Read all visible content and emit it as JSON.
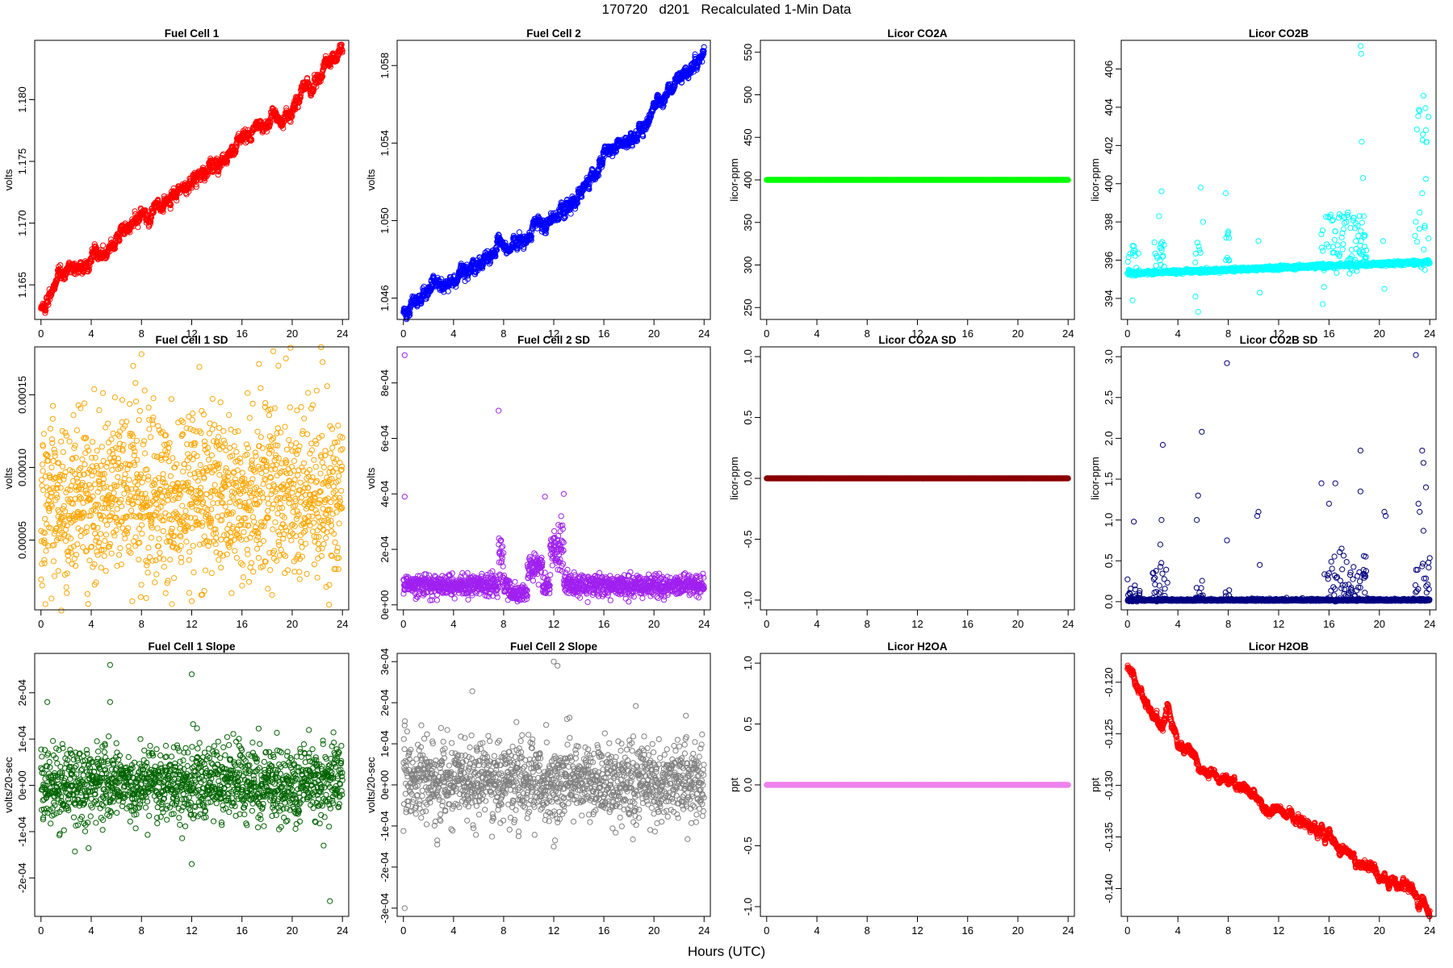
{
  "figure": {
    "title": "170720   d201   Recalculated 1-Min Data",
    "xlabel": "Hours (UTC)"
  },
  "chart_data": [
    {
      "id": "fc1",
      "type": "scatter",
      "title": "Fuel Cell 1",
      "ylabel": "volts",
      "color": "#ff0000",
      "xlim": [
        -0.5,
        24.5
      ],
      "ylim": [
        1.1622,
        1.1848
      ],
      "xticks": [
        0,
        4,
        8,
        12,
        16,
        20,
        24
      ],
      "yticks": [
        1.165,
        1.17,
        1.175,
        1.18
      ],
      "ytick_labels": [
        "1.165",
        "1.170",
        "1.175",
        "1.180"
      ],
      "gen": {
        "kind": "trend",
        "points": [
          [
            0,
            1.163
          ],
          [
            1,
            1.1645
          ],
          [
            2,
            1.1656
          ],
          [
            4,
            1.1672
          ],
          [
            6,
            1.1685
          ],
          [
            8,
            1.1705
          ],
          [
            10,
            1.1715
          ],
          [
            12,
            1.1732
          ],
          [
            14,
            1.1748
          ],
          [
            16,
            1.1768
          ],
          [
            18,
            1.1778
          ],
          [
            20,
            1.1795
          ],
          [
            22,
            1.1818
          ],
          [
            24,
            1.1838
          ]
        ],
        "noise": 0.0003,
        "n": 1440
      }
    },
    {
      "id": "fc2",
      "type": "scatter",
      "title": "Fuel Cell 2",
      "ylabel": "volts",
      "color": "#0000ff",
      "xlim": [
        -0.5,
        24.5
      ],
      "ylim": [
        1.0449,
        1.0593
      ],
      "xticks": [
        0,
        4,
        8,
        12,
        16,
        20,
        24
      ],
      "yticks": [
        1.046,
        1.05,
        1.054,
        1.058
      ],
      "ytick_labels": [
        "1.046",
        "1.050",
        "1.054",
        "1.058"
      ],
      "gen": {
        "kind": "trend",
        "points": [
          [
            0,
            1.0455
          ],
          [
            1,
            1.046
          ],
          [
            2,
            1.0463
          ],
          [
            4,
            1.047
          ],
          [
            6,
            1.0478
          ],
          [
            8,
            1.0487
          ],
          [
            10,
            1.0493
          ],
          [
            12,
            1.0502
          ],
          [
            14,
            1.0512
          ],
          [
            16,
            1.0532
          ],
          [
            18,
            1.054
          ],
          [
            20,
            1.0556
          ],
          [
            22,
            1.0573
          ],
          [
            24,
            1.0585
          ]
        ],
        "noise": 0.0002,
        "n": 1440
      }
    },
    {
      "id": "co2a",
      "type": "scatter",
      "title": "Licor CO2A",
      "ylabel": "licor-ppm",
      "color": "#00ff00",
      "xlim": [
        -0.5,
        24.5
      ],
      "ylim": [
        236,
        564
      ],
      "xticks": [
        0,
        4,
        8,
        12,
        16,
        20,
        24
      ],
      "yticks": [
        250,
        300,
        350,
        400,
        450,
        500,
        550
      ],
      "ytick_labels": [
        "250",
        "300",
        "350",
        "400",
        "450",
        "500",
        "550"
      ],
      "gen": {
        "kind": "flat",
        "value": 400,
        "n": 1440
      }
    },
    {
      "id": "co2b",
      "type": "scatter",
      "title": "Licor CO2B",
      "ylabel": "licor-ppm",
      "color": "#00ffff",
      "xlim": [
        -0.5,
        24.5
      ],
      "ylim": [
        392.9,
        407.5
      ],
      "xticks": [
        0,
        4,
        8,
        12,
        16,
        20,
        24
      ],
      "yticks": [
        394,
        396,
        398,
        400,
        402,
        404,
        406
      ],
      "ytick_labels": [
        "394",
        "396",
        "398",
        "400",
        "402",
        "404",
        "406"
      ],
      "gen": {
        "kind": "base_spikes",
        "start": 395.3,
        "end": 395.9,
        "noise": 0.05,
        "n": 1440,
        "spikes": [
          [
            0.4,
            393.9
          ],
          [
            0.6,
            396.5
          ],
          [
            2.5,
            398.3
          ],
          [
            2.7,
            399.6
          ],
          [
            2.9,
            396.8
          ],
          [
            5.4,
            394.1
          ],
          [
            5.6,
            393.3
          ],
          [
            5.8,
            399.8
          ],
          [
            6.0,
            398.0
          ],
          [
            7.8,
            399.5
          ],
          [
            8.0,
            397.5
          ],
          [
            10.5,
            394.3
          ],
          [
            10.4,
            397.0
          ],
          [
            15.5,
            393.7
          ],
          [
            15.6,
            394.6
          ],
          [
            16.5,
            397.5
          ],
          [
            17.0,
            398.3
          ],
          [
            17.5,
            398.5
          ],
          [
            18.5,
            407.2
          ],
          [
            18.55,
            406.8
          ],
          [
            18.6,
            402.2
          ],
          [
            18.7,
            400.3
          ],
          [
            20.4,
            394.5
          ],
          [
            20.3,
            397.0
          ],
          [
            22.9,
            398.0
          ],
          [
            23.2,
            403.8
          ],
          [
            23.5,
            404.6
          ],
          [
            23.7,
            402.8
          ],
          [
            23.9,
            403.5
          ],
          [
            23.4,
            399.5
          ],
          [
            23.6,
            397.8
          ]
        ],
        "scatter_windows": [
          [
            0,
            1,
            396.8
          ],
          [
            2,
            3,
            397
          ],
          [
            5.3,
            6,
            397
          ],
          [
            7.7,
            8.1,
            397.5
          ],
          [
            15.3,
            19,
            398.5
          ],
          [
            22.8,
            24,
            404
          ]
        ]
      }
    },
    {
      "id": "fc1sd",
      "type": "scatter",
      "title": "Fuel Cell 1 SD",
      "ylabel": "volts",
      "color": "#ffa500",
      "xlim": [
        -0.5,
        24.5
      ],
      "ylim": [
        2e-06,
        0.000183
      ],
      "xticks": [
        0,
        4,
        8,
        12,
        16,
        20,
        24
      ],
      "yticks": [
        5e-05,
        0.0001,
        0.00015
      ],
      "ytick_labels": [
        "0.00005",
        "0.00010",
        "0.00015"
      ],
      "gen": {
        "kind": "noise",
        "center": 8e-05,
        "spread": 3e-05,
        "n": 1440,
        "outliers": [
          [
            18.5,
            0.00018
          ],
          [
            19.5,
            0.000175
          ],
          [
            8,
            0.000178
          ],
          [
            12,
            8e-06
          ],
          [
            13,
            1.5e-05
          ],
          [
            18.9,
            0.00017
          ]
        ]
      }
    },
    {
      "id": "fc2sd",
      "type": "scatter",
      "title": "Fuel Cell 2 SD",
      "ylabel": "volts",
      "color": "#a020f0",
      "xlim": [
        -0.5,
        24.5
      ],
      "ylim": [
        -1.8e-05,
        0.00093
      ],
      "xticks": [
        0,
        4,
        8,
        12,
        16,
        20,
        24
      ],
      "yticks": [
        0,
        0.0002,
        0.0004,
        0.0006,
        0.0008
      ],
      "ytick_labels": [
        "0e+00",
        "2e-04",
        "4e-04",
        "6e-04",
        "8e-04"
      ],
      "gen": {
        "kind": "sd2",
        "n": 1440,
        "outliers": [
          [
            0.1,
            0.0009
          ],
          [
            0.1,
            0.00039
          ],
          [
            7.6,
            0.0007
          ],
          [
            11.3,
            0.00039
          ],
          [
            12.8,
            0.0004
          ]
        ]
      }
    },
    {
      "id": "co2asd",
      "type": "scatter",
      "title": "Licor CO2A SD",
      "ylabel": "licor-ppm",
      "color": "#8b0000",
      "xlim": [
        -0.5,
        24.5
      ],
      "ylim": [
        -1.08,
        1.08
      ],
      "xticks": [
        0,
        4,
        8,
        12,
        16,
        20,
        24
      ],
      "yticks": [
        -1,
        -0.5,
        0,
        0.5,
        1
      ],
      "ytick_labels": [
        "-1.0",
        "-0.5",
        "0.0",
        "0.5",
        "1.0"
      ],
      "gen": {
        "kind": "flat",
        "value": 0,
        "n": 1440
      }
    },
    {
      "id": "co2bsd",
      "type": "scatter",
      "title": "Licor CO2B SD",
      "ylabel": "licor-ppm",
      "color": "#000080",
      "xlim": [
        -0.5,
        24.5
      ],
      "ylim": [
        -0.1,
        3.12
      ],
      "xticks": [
        0,
        4,
        8,
        12,
        16,
        20,
        24
      ],
      "yticks": [
        0,
        0.5,
        1,
        1.5,
        2,
        2.5,
        3
      ],
      "ytick_labels": [
        "0.0",
        "0.5",
        "1.0",
        "1.5",
        "2.0",
        "2.5",
        "3.0"
      ],
      "gen": {
        "kind": "sdspikes",
        "n": 1440,
        "spikes": [
          [
            0.5,
            0.98
          ],
          [
            2.7,
            1.0
          ],
          [
            2.8,
            1.92
          ],
          [
            2.6,
            0.7
          ],
          [
            5.6,
            1.3
          ],
          [
            5.5,
            1.0
          ],
          [
            5.9,
            2.08
          ],
          [
            7.9,
            2.92
          ],
          [
            7.9,
            0.75
          ],
          [
            10.3,
            1.05
          ],
          [
            10.4,
            1.1
          ],
          [
            10.5,
            0.45
          ],
          [
            15.4,
            1.45
          ],
          [
            16.0,
            1.2
          ],
          [
            16.5,
            1.45
          ],
          [
            17.0,
            0.65
          ],
          [
            18.5,
            1.85
          ],
          [
            18.5,
            1.35
          ],
          [
            20.4,
            1.1
          ],
          [
            20.5,
            1.05
          ],
          [
            22.9,
            3.02
          ],
          [
            23.1,
            1.2
          ],
          [
            23.4,
            1.85
          ],
          [
            23.5,
            1.7
          ],
          [
            23.7,
            1.4
          ],
          [
            23.2,
            1.1
          ]
        ],
        "scatter_windows": [
          [
            0,
            1,
            0.4
          ],
          [
            2,
            3.2,
            0.6
          ],
          [
            5.3,
            6,
            0.6
          ],
          [
            7.7,
            8.1,
            0.3
          ],
          [
            15.5,
            19,
            0.8
          ],
          [
            22.8,
            24,
            1.0
          ]
        ]
      }
    },
    {
      "id": "fc1slope",
      "type": "scatter",
      "title": "Fuel Cell 1 Slope",
      "ylabel": "volts/20-sec",
      "color": "#006400",
      "xlim": [
        -0.5,
        24.5
      ],
      "ylim": [
        -0.000283,
        0.000285
      ],
      "xticks": [
        0,
        4,
        8,
        12,
        16,
        20,
        24
      ],
      "yticks": [
        -0.0002,
        -0.0001,
        0,
        0.0001,
        0.0002
      ],
      "ytick_labels": [
        "-2e-04",
        "-1e-04",
        "0e+00",
        "1e-04",
        "2e-04"
      ],
      "gen": {
        "kind": "noise",
        "center": 3e-06,
        "spread": 4.2e-05,
        "n": 1440,
        "outliers": [
          [
            5.5,
            0.00026
          ],
          [
            12,
            0.00024
          ],
          [
            0.5,
            0.00018
          ],
          [
            5.5,
            0.00018
          ],
          [
            23,
            -0.00025
          ],
          [
            12,
            -0.00017
          ],
          [
            2.7,
            -0.000143
          ]
        ]
      }
    },
    {
      "id": "fc2slope",
      "type": "scatter",
      "title": "Fuel Cell 2 Slope",
      "ylabel": "volts/20-sec",
      "color": "#808080",
      "xlim": [
        -0.5,
        24.5
      ],
      "ylim": [
        -0.00032,
        0.00032
      ],
      "xticks": [
        0,
        4,
        8,
        12,
        16,
        20,
        24
      ],
      "yticks": [
        -0.0003,
        -0.0002,
        -0.0001,
        0,
        0.0001,
        0.0002,
        0.0003
      ],
      "ytick_labels": [
        "-3e-04",
        "-2e-04",
        "-1e-04",
        "0e+00",
        "1e-04",
        "2e-04",
        "3e-04"
      ],
      "gen": {
        "kind": "noise",
        "center": 1e-05,
        "spread": 4.8e-05,
        "n": 1440,
        "outliers": [
          [
            0.1,
            -0.0003
          ],
          [
            12,
            0.0003
          ],
          [
            12.3,
            0.00029
          ],
          [
            5.5,
            0.000228
          ],
          [
            12,
            -0.00015
          ],
          [
            12.1,
            -0.000135
          ],
          [
            2.7,
            -0.000145
          ]
        ]
      }
    },
    {
      "id": "h2oa",
      "type": "scatter",
      "title": "Licor H2OA",
      "ylabel": "ppt",
      "color": "#ee82ee",
      "xlim": [
        -0.5,
        24.5
      ],
      "ylim": [
        -1.08,
        1.08
      ],
      "xticks": [
        0,
        4,
        8,
        12,
        16,
        20,
        24
      ],
      "yticks": [
        -1,
        -0.5,
        0,
        0.5,
        1
      ],
      "ytick_labels": [
        "-1.0",
        "-0.5",
        "0.0",
        "0.5",
        "1.0"
      ],
      "gen": {
        "kind": "flat",
        "value": 0,
        "n": 1440
      }
    },
    {
      "id": "h2ob",
      "type": "scatter",
      "title": "Licor H2OB",
      "ylabel": "ppt",
      "color": "#ff0000",
      "xlim": [
        -0.5,
        24.5
      ],
      "ylim": [
        -0.1427,
        -0.1172
      ],
      "xticks": [
        0,
        4,
        8,
        12,
        16,
        20,
        24
      ],
      "yticks": [
        -0.14,
        -0.135,
        -0.13,
        -0.125,
        -0.12
      ],
      "ytick_labels": [
        "-0.140",
        "-0.135",
        "-0.130",
        "-0.125",
        "-0.120"
      ],
      "gen": {
        "kind": "trend",
        "points": [
          [
            0,
            -0.1185
          ],
          [
            1,
            -0.121
          ],
          [
            2,
            -0.1235
          ],
          [
            2.8,
            -0.1245
          ],
          [
            3.2,
            -0.1225
          ],
          [
            4,
            -0.1262
          ],
          [
            4.8,
            -0.1258
          ],
          [
            5.6,
            -0.1282
          ],
          [
            7,
            -0.1288
          ],
          [
            8,
            -0.1298
          ],
          [
            10,
            -0.1308
          ],
          [
            11,
            -0.1325
          ],
          [
            12,
            -0.1328
          ],
          [
            14,
            -0.1338
          ],
          [
            16,
            -0.1352
          ],
          [
            18,
            -0.1368
          ],
          [
            20,
            -0.139
          ],
          [
            22,
            -0.1398
          ],
          [
            24,
            -0.1418
          ]
        ],
        "noise": 0.00025,
        "n": 1440
      }
    }
  ]
}
